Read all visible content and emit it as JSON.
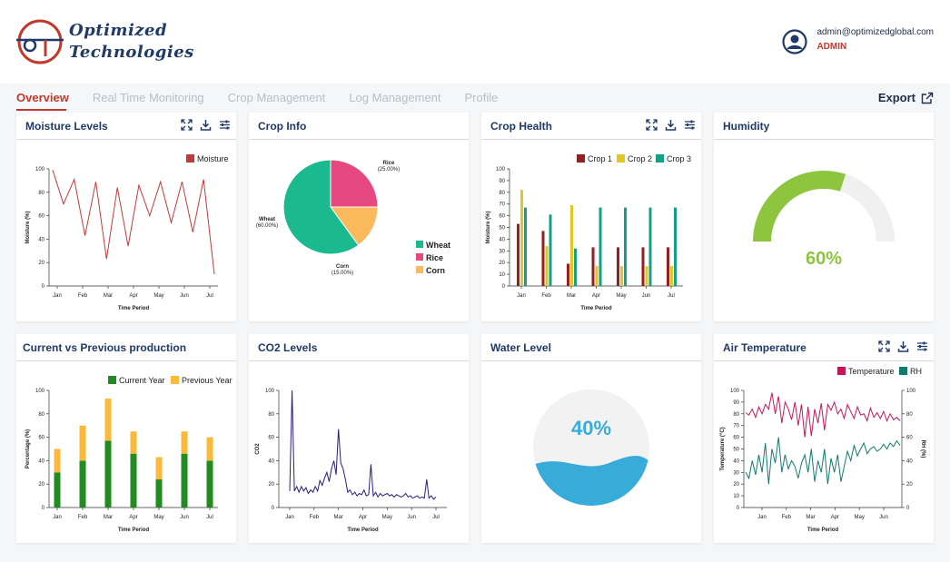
{
  "brand": {
    "line1": "Optimized",
    "line2": "Technologies"
  },
  "user": {
    "email": "admin@optimizedglobal.com",
    "role": "ADMIN"
  },
  "nav": {
    "tabs": [
      "Overview",
      "Real Time Monitoring",
      "Crop Management",
      "Log Management",
      "Profile"
    ],
    "active": "Overview",
    "export_label": "Export"
  },
  "colors": {
    "accent": "#c0392b",
    "navy": "#1f3a66"
  },
  "cards": {
    "moisture": {
      "title": "Moisture Levels"
    },
    "crop_info": {
      "title": "Crop Info"
    },
    "crop_health": {
      "title": "Crop Health"
    },
    "humidity": {
      "title": "Humidity",
      "value_text": "60%",
      "value": 0.6
    },
    "production": {
      "title": "Current vs Previous production"
    },
    "co2": {
      "title": "CO2 Levels"
    },
    "water": {
      "title": "Water Level",
      "value_text": "40%",
      "value": 0.4
    },
    "air_temp": {
      "title": "Air Temperature"
    }
  },
  "chart_data": [
    {
      "id": "moisture",
      "type": "line",
      "xlabel": "Time Period",
      "ylabel": "Moisture (%)",
      "ylim": [
        0,
        100
      ],
      "yticks": [
        0,
        20,
        40,
        60,
        80,
        100
      ],
      "xticks": [
        "Jan",
        "Feb",
        "Mar",
        "Apr",
        "May",
        "Jun",
        "Jul"
      ],
      "series": [
        {
          "name": "Moisture",
          "color": "#c23b3b",
          "values": [
            99,
            70,
            91,
            43,
            89,
            23,
            84,
            34,
            86,
            60,
            89,
            54,
            89,
            46,
            91,
            10
          ]
        }
      ]
    },
    {
      "id": "crop_info",
      "type": "pie",
      "slices": [
        {
          "label": "Wheat",
          "pct_label": "(60.00%)",
          "value": 60,
          "color": "#1ab98f"
        },
        {
          "label": "Rice",
          "pct_label": "(25.00%)",
          "value": 25,
          "color": "#e64980"
        },
        {
          "label": "Corn",
          "pct_label": "(15.00%)",
          "value": 15,
          "color": "#fbb95d"
        }
      ]
    },
    {
      "id": "crop_health",
      "type": "bar",
      "xlabel": "Time Period",
      "ylabel": "Moisture (%)",
      "ylim": [
        0,
        100
      ],
      "yticks": [
        0,
        10,
        20,
        30,
        40,
        50,
        60,
        70,
        80,
        90,
        100
      ],
      "categories": [
        "Jan",
        "Feb",
        "Mar",
        "Apr",
        "May",
        "Jun",
        "Jul"
      ],
      "series": [
        {
          "name": "Crop 1",
          "color": "#9b1c1c",
          "values": [
            53,
            47,
            19,
            33,
            33,
            33,
            33
          ]
        },
        {
          "name": "Crop 2",
          "color": "#e2c625",
          "values": [
            82,
            34,
            69,
            17,
            17,
            17,
            17
          ]
        },
        {
          "name": "Crop 3",
          "color": "#14a085",
          "values": [
            67,
            61,
            32,
            67,
            67,
            67,
            67
          ]
        }
      ]
    },
    {
      "id": "production",
      "type": "bar",
      "stacked": true,
      "xlabel": "Time Period",
      "ylabel": "Percentage (%)",
      "ylim": [
        0,
        100
      ],
      "yticks": [
        0,
        20,
        40,
        60,
        80,
        100
      ],
      "categories": [
        "Jan",
        "Feb",
        "Mar",
        "Apr",
        "May",
        "Jun",
        "Jul"
      ],
      "series": [
        {
          "name": "Current Year",
          "color": "#228b22",
          "values": [
            30,
            40,
            57,
            46,
            24,
            46,
            40
          ]
        },
        {
          "name": "Previous Year",
          "color": "#fbb93a",
          "values": [
            20,
            30,
            36,
            19,
            19,
            19,
            20
          ]
        }
      ]
    },
    {
      "id": "co2",
      "type": "line",
      "xlabel": "Time Period",
      "ylabel": "CO2",
      "ylim": [
        0,
        100
      ],
      "yticks": [
        0,
        20,
        40,
        60,
        80,
        100
      ],
      "xticks": [
        "Jan",
        "Feb",
        "Mar",
        "Apr",
        "May",
        "Jun",
        "Jul"
      ],
      "series": [
        {
          "name": "CO2",
          "color": "#2b1e7a",
          "values": [
            14,
            100,
            14,
            18,
            13,
            18,
            14,
            17,
            12,
            15,
            13,
            18,
            14,
            23,
            19,
            25,
            30,
            22,
            33,
            40,
            28,
            67,
            38,
            33,
            24,
            13,
            15,
            11,
            13,
            10,
            12,
            11,
            15,
            10,
            11,
            37,
            10,
            13,
            9,
            12,
            10,
            11,
            12,
            10,
            11,
            9,
            11,
            10,
            9,
            10,
            12,
            9,
            10,
            8,
            9,
            10,
            8,
            9,
            8,
            24,
            8,
            10,
            7,
            9
          ]
        }
      ]
    },
    {
      "id": "air_temp",
      "type": "line",
      "xlabel": "Time Period",
      "ylabel": "Temperature (°C)",
      "y2label": "RH (%)",
      "ylim": [
        0,
        100
      ],
      "yticks": [
        0,
        10,
        20,
        30,
        40,
        50,
        60,
        70,
        80,
        90,
        100
      ],
      "y2ticks": [
        0,
        20,
        40,
        60,
        80,
        100
      ],
      "xticks": [
        "Jan",
        "Feb",
        "Mar",
        "Apr",
        "May",
        "Jun"
      ],
      "series": [
        {
          "name": "Temperature",
          "color": "#c2185b",
          "values": [
            81,
            79,
            84,
            77,
            86,
            80,
            88,
            84,
            98,
            80,
            95,
            72,
            90,
            84,
            75,
            90,
            70,
            88,
            60,
            86,
            61,
            84,
            72,
            89,
            66,
            88,
            83,
            90,
            80,
            84,
            76,
            88,
            82,
            76,
            86,
            79,
            80,
            74,
            85,
            77,
            81,
            76,
            82,
            74,
            80,
            75,
            77,
            74
          ]
        },
        {
          "name": "RH",
          "color": "#137a6e",
          "values": [
            30,
            25,
            40,
            28,
            45,
            30,
            55,
            20,
            50,
            38,
            60,
            30,
            45,
            33,
            40,
            35,
            25,
            38,
            45,
            30,
            50,
            22,
            40,
            30,
            50,
            20,
            42,
            30,
            45,
            22,
            35,
            48,
            40,
            53,
            44,
            50,
            55,
            46,
            50,
            52,
            48,
            50,
            54,
            50,
            55,
            52,
            57,
            53
          ]
        }
      ]
    }
  ]
}
